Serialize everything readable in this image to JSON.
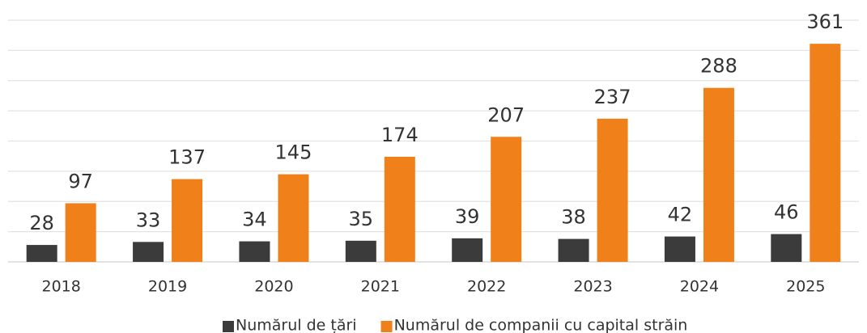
{
  "chart_data": {
    "type": "bar",
    "categories": [
      "2018",
      "2019",
      "2020",
      "2021",
      "2022",
      "2023",
      "2024",
      "2025"
    ],
    "series": [
      {
        "name": "Numărul de țări",
        "color": "#3b3b3b",
        "values": [
          28,
          33,
          34,
          35,
          39,
          38,
          42,
          46
        ]
      },
      {
        "name": "Numărul de companii cu capital străin",
        "color": "#f0801a",
        "values": [
          97,
          137,
          145,
          174,
          207,
          237,
          288,
          361
        ]
      }
    ],
    "ylim": [
      0,
      400
    ],
    "yticks": [
      0,
      50,
      100,
      150,
      200,
      250,
      300,
      350,
      400
    ],
    "grid": true,
    "legend": "bottom"
  }
}
